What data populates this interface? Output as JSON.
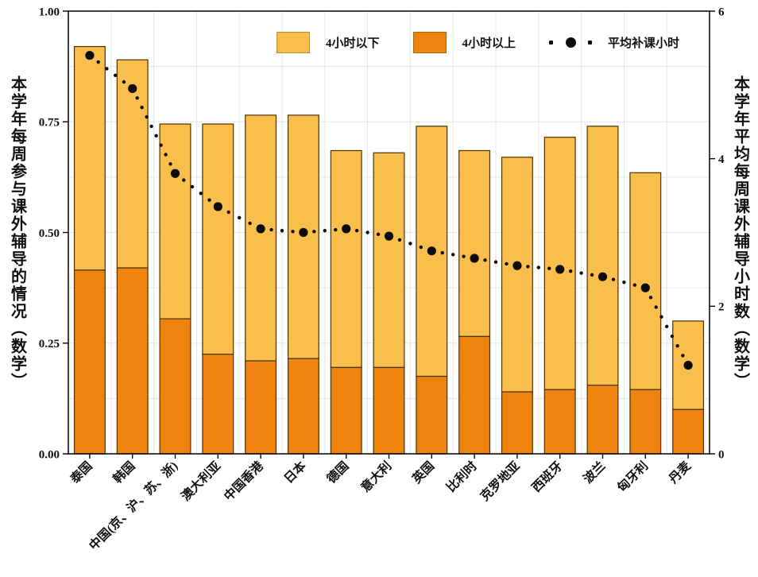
{
  "figure": {
    "left_axis_title": "本学年每周参与课外辅导的情况（数学）",
    "right_axis_title": "本学年平均每周课外辅导小时数（数学）"
  },
  "chart_data": {
    "type": "bar",
    "subtype": "stacked-bars-with-dotted-point-line",
    "categories": [
      "泰国",
      "韩国",
      "中国(京、沪、苏、浙)",
      "澳大利亚",
      "中国香港",
      "日本",
      "德国",
      "意大利",
      "英国",
      "比利时",
      "克罗地亚",
      "西班牙",
      "波兰",
      "匈牙利",
      "丹麦"
    ],
    "series": [
      {
        "name": "4小时以下",
        "role": "stack-top",
        "color": "#F9BE4B",
        "values": [
          0.505,
          0.47,
          0.44,
          0.52,
          0.555,
          0.55,
          0.49,
          0.485,
          0.565,
          0.42,
          0.53,
          0.57,
          0.585,
          0.49,
          0.2
        ]
      },
      {
        "name": "4小时以上",
        "role": "stack-bottom",
        "color": "#EE830D",
        "values": [
          0.415,
          0.42,
          0.305,
          0.225,
          0.21,
          0.215,
          0.195,
          0.195,
          0.175,
          0.265,
          0.14,
          0.145,
          0.155,
          0.145,
          0.1
        ]
      }
    ],
    "stack_totals": [
      0.92,
      0.89,
      0.745,
      0.745,
      0.765,
      0.765,
      0.685,
      0.68,
      0.74,
      0.685,
      0.67,
      0.715,
      0.74,
      0.635,
      0.3
    ],
    "line": {
      "name": "平均补课小时",
      "axis": "right",
      "color": "#0c0c0c",
      "style": "dotted-with-points",
      "values": [
        5.4,
        4.95,
        3.8,
        3.35,
        3.05,
        3.0,
        3.05,
        2.95,
        2.75,
        2.65,
        2.55,
        2.5,
        2.4,
        2.25,
        1.2
      ]
    },
    "left_axis": {
      "min": 0,
      "max": 1,
      "ticks": [
        {
          "label": "0.00",
          "value": 0
        },
        {
          "label": "0.25",
          "value": 0.25
        },
        {
          "label": "0.50",
          "value": 0.5
        },
        {
          "label": "0.75",
          "value": 0.75
        },
        {
          "label": "1.00",
          "value": 1
        }
      ]
    },
    "right_axis": {
      "min": 0,
      "max": 6,
      "ticks": [
        {
          "label": "0",
          "value": 0
        },
        {
          "label": "2",
          "value": 2
        },
        {
          "label": "4",
          "value": 4
        },
        {
          "label": "6",
          "value": 6
        }
      ]
    },
    "grid": {
      "horizontal_step": 0.125,
      "vertical": "category-boundaries",
      "color": "#e6e6e6"
    },
    "legend_position": "top-inside",
    "panel_border": true
  }
}
